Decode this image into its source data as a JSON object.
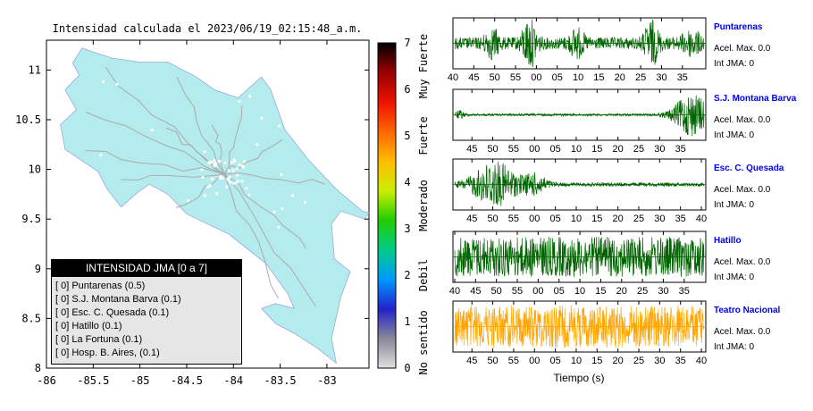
{
  "map": {
    "title": "Intensidad calculada el 2023/06/19_02:15:48_a.m.",
    "x_ticks": [
      "-86",
      "-85.5",
      "-85",
      "-84.5",
      "-84",
      "-83.5",
      "-83"
    ],
    "y_ticks": [
      "11",
      "10.5",
      "10",
      "9.5",
      "9",
      "8.5",
      "8"
    ],
    "colors": {
      "land": "#b4ecee",
      "roads": "#aaaaaa",
      "station_dots": "#ffffff"
    }
  },
  "legend": {
    "header": "INTENSIDAD JMA [0 a 7]",
    "rows": [
      "[ 0]  Puntarenas (0.5)",
      "[ 0]  S.J. Montana Barva (0.1)",
      "[ 0]  Esc. C. Quesada (0.1)",
      "[ 0]  Hatillo (0.1)",
      "[ 0]  La Fortuna (0.1)",
      "[ 0]  Hosp. B. Aires, (0.1)"
    ]
  },
  "colorbar": {
    "ticks": [
      "7",
      "6",
      "5",
      "4",
      "3",
      "2",
      "1",
      "0"
    ],
    "category_labels": [
      "Muy Fuerte",
      "Fuerte",
      "Moderado",
      "Debil",
      "No sentido"
    ],
    "colors": [
      "#e0e0e0",
      "#888898",
      "#2222cc",
      "#0099ff",
      "#00cc88",
      "#22cc00",
      "#ccee00",
      "#ffbb00",
      "#ff6600",
      "#ee1100",
      "#990000",
      "#000000"
    ]
  },
  "panels": {
    "stations": [
      {
        "name": "Puntarenas",
        "acel": "Acel. Max. 0.0",
        "int": "Int JMA: 0",
        "color": "#006400",
        "ticks": [
          "40",
          "45",
          "50",
          "55",
          "00",
          "05",
          "10",
          "15",
          "20",
          "25",
          "30",
          "35"
        ]
      },
      {
        "name": "S.J. Montana Barva",
        "acel": "Acel. Max. 0.0",
        "int": "Int JMA: 0",
        "color": "#006400",
        "ticks": [
          "45",
          "50",
          "55",
          "00",
          "05",
          "10",
          "15",
          "20",
          "25",
          "30",
          "35"
        ]
      },
      {
        "name": "Esc. C. Quesada",
        "acel": "Acel. Max. 0.0",
        "int": "Int JMA: 0",
        "color": "#006400",
        "ticks": [
          "45",
          "50",
          "55",
          "00",
          "05",
          "10",
          "15",
          "20",
          "25",
          "30",
          "35",
          "40"
        ]
      },
      {
        "name": "Hatillo",
        "acel": "Acel. Max. 0.0",
        "int": "Int JMA: 0",
        "color": "#006400",
        "ticks": [
          "40",
          "45",
          "50",
          "55",
          "00",
          "05",
          "10",
          "15",
          "20",
          "25",
          "30",
          "35"
        ]
      },
      {
        "name": "Teatro Nacional",
        "acel": "Acel. Max. 0.0",
        "int": "Int JMA: 0",
        "color": "#ffa500",
        "ticks": [
          "45",
          "50",
          "55",
          "00",
          "05",
          "10",
          "15",
          "20",
          "25",
          "30",
          "35",
          "40"
        ]
      }
    ],
    "xlabel": "Tiempo (s)",
    "name_color": "#0000ee"
  },
  "chart_data": [
    {
      "type": "map",
      "title": "Intensidad calculada el 2023/06/19_02:15:48_a.m.",
      "xlim": [
        -86,
        -82.55
      ],
      "ylim": [
        8,
        11.3
      ],
      "legend": [
        "[ 0]  Puntarenas (0.5)",
        "[ 0]  S.J. Montana Barva (0.1)",
        "[ 0]  Esc. C. Quesada (0.1)",
        "[ 0]  Hatillo (0.1)",
        "[ 0]  La Fortuna (0.1)",
        "[ 0]  Hosp. B. Aires, (0.1)"
      ]
    },
    {
      "type": "colorbar",
      "range": [
        0,
        7
      ],
      "ticks": [
        0,
        1,
        2,
        3,
        4,
        5,
        6,
        7
      ],
      "labels": [
        "No sentido",
        "Debil",
        "Moderado",
        "Fuerte",
        "Muy Fuerte"
      ]
    },
    {
      "type": "line",
      "series": [
        {
          "name": "Puntarenas"
        },
        {
          "name": "S.J. Montana Barva"
        },
        {
          "name": "Esc. C. Quesada"
        },
        {
          "name": "Hatillo"
        },
        {
          "name": "Teatro Nacional"
        }
      ],
      "xlabel": "Tiempo (s)"
    }
  ]
}
